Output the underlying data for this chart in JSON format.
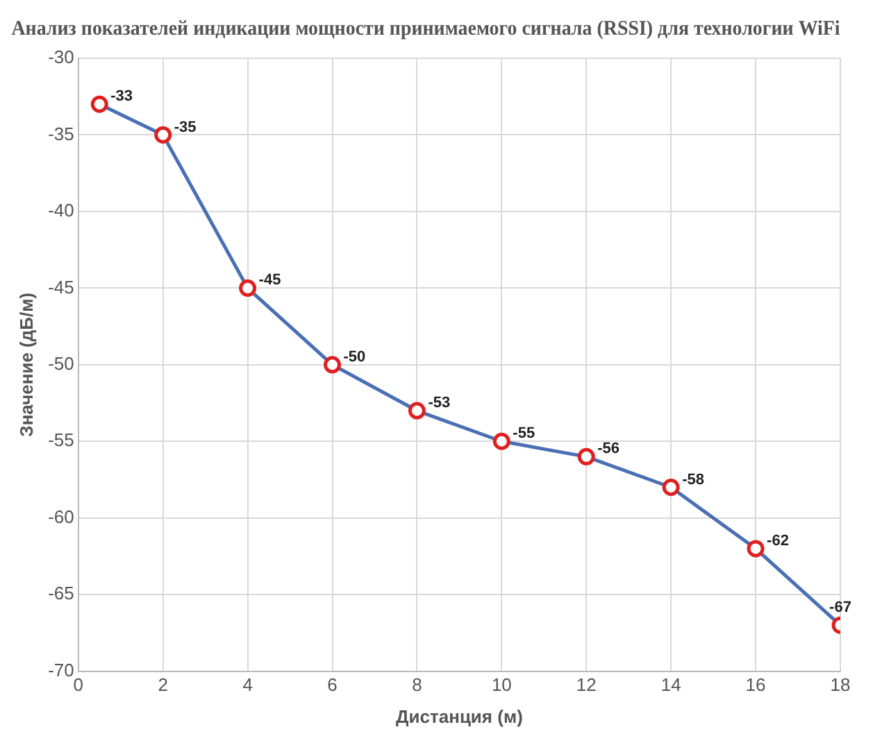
{
  "chart_data": {
    "type": "line",
    "title": "Анализ показателей индикации мощности принимаемого сигнала (RSSI) для технологии WiFi",
    "xlabel": "Дистанция (м)",
    "ylabel": "Значение (дБ/м)",
    "x": [
      0.5,
      2,
      4,
      6,
      8,
      10,
      12,
      14,
      16,
      18
    ],
    "series": [
      {
        "color": "#4a6fb5",
        "values": [
          -33,
          -35,
          -45,
          -50,
          -53,
          -55,
          -56,
          -58,
          -62,
          -67
        ]
      }
    ],
    "xlim": [
      0,
      18
    ],
    "xticks": [
      0,
      2,
      4,
      6,
      8,
      10,
      12,
      14,
      16,
      18
    ],
    "ylim": [
      -70,
      -30
    ],
    "yticks": [
      -70,
      -65,
      -60,
      -55,
      -50,
      -45,
      -40,
      -35,
      -30
    ],
    "grid": true,
    "legend": false,
    "marker": "circle",
    "line_style": "solid",
    "data_labels": true
  }
}
